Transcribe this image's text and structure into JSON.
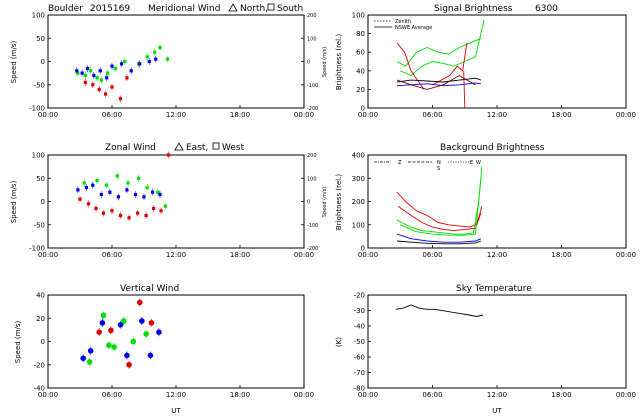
{
  "time_ticks": [
    "00:00",
    "06:00",
    "12:00",
    "18:00",
    "00:00"
  ],
  "x_label": "UT",
  "colors": {
    "north": "#0000ee",
    "south": "#dd0000",
    "east": "#00dd00",
    "west": "#0000ee",
    "zonal_west": "#dd0000"
  },
  "chart_data": [
    {
      "id": "meridional",
      "type": "scatter",
      "title_left": "Boulder",
      "title_date": "2015169",
      "title_main": "Meridional Wind",
      "title_leg1": "North,",
      "title_leg2": "South",
      "ylabel": "Speed (m/s)",
      "ylabel_right": "Speed (m/s)",
      "ylim": [
        -100,
        100
      ],
      "yticks": [
        "100",
        "50",
        "0",
        "-50",
        "-100"
      ],
      "yticks_right": [
        "200",
        "100",
        "0",
        "-100",
        "-200"
      ],
      "series": [
        {
          "color": "green",
          "x": [
            2.8,
            3.5,
            4.0,
            4.6,
            5.0,
            5.6,
            6.3,
            7.2,
            8.5,
            9.3,
            10.0,
            10.5,
            11.2
          ],
          "y": [
            -25,
            -30,
            -20,
            -35,
            -40,
            -25,
            -15,
            0,
            -5,
            10,
            20,
            30,
            5
          ]
        },
        {
          "color": "blue",
          "x": [
            2.7,
            3.2,
            3.7,
            4.3,
            4.9,
            5.5,
            6.0,
            6.9,
            7.8,
            8.6,
            9.5,
            10.1
          ],
          "y": [
            -20,
            -25,
            -15,
            -30,
            -20,
            -35,
            -10,
            -5,
            -20,
            -5,
            0,
            5
          ]
        },
        {
          "color": "red",
          "x": [
            3.5,
            4.2,
            4.8,
            5.4,
            6.0,
            6.8,
            7.4
          ],
          "y": [
            -45,
            -50,
            -60,
            -70,
            -55,
            -80,
            -35
          ]
        }
      ]
    },
    {
      "id": "zonal",
      "type": "scatter",
      "title_main": "Zonal Wind",
      "title_leg1": "East,",
      "title_leg2": "West",
      "ylabel": "Speed (m/s)",
      "ylabel_right": "Speed (m/s)",
      "ylim": [
        -100,
        100
      ],
      "yticks": [
        "100",
        "50",
        "0",
        "-50",
        "-100"
      ],
      "yticks_right": [
        "200",
        "100",
        "0",
        "-100",
        "-200"
      ],
      "series": [
        {
          "color": "green",
          "x": [
            3.4,
            4.6,
            5.5,
            6.5,
            7.5,
            8.5,
            9.3,
            10.3,
            11.0
          ],
          "y": [
            40,
            45,
            35,
            55,
            40,
            50,
            30,
            20,
            -10
          ]
        },
        {
          "color": "blue",
          "x": [
            2.8,
            3.6,
            4.2,
            5.0,
            5.8,
            6.6,
            7.4,
            8.2,
            9.0,
            9.8,
            10.5
          ],
          "y": [
            25,
            30,
            35,
            15,
            20,
            10,
            25,
            15,
            10,
            20,
            15
          ]
        },
        {
          "color": "red",
          "x": [
            3.0,
            3.8,
            4.5,
            5.2,
            6.0,
            6.8,
            7.6,
            8.4,
            9.2,
            9.9,
            10.6,
            11.3
          ],
          "y": [
            5,
            -5,
            -15,
            -25,
            -20,
            -30,
            -35,
            -25,
            -30,
            -15,
            -20,
            100
          ]
        }
      ]
    },
    {
      "id": "vertical",
      "type": "scatter",
      "title_main": "Vertical Wind",
      "ylabel": "Speed (m/s)",
      "ylim": [
        -50,
        50
      ],
      "yticks": [
        "40",
        "20",
        "0",
        "-20",
        "-40"
      ],
      "series": [
        {
          "color": "blue",
          "x": [
            3.3,
            4.0,
            5.1,
            6.8,
            7.4,
            8.8,
            9.6,
            10.4
          ],
          "y": [
            -18,
            -10,
            20,
            18,
            -15,
            22,
            -15,
            10
          ]
        },
        {
          "color": "red",
          "x": [
            4.8,
            5.9,
            7.6,
            8.6,
            9.7
          ],
          "y": [
            10,
            12,
            -25,
            42,
            20
          ]
        },
        {
          "color": "green",
          "x": [
            3.9,
            5.2,
            5.7,
            6.2,
            7.1,
            8.0,
            9.2
          ],
          "y": [
            -22,
            28,
            -4,
            -6,
            22,
            0,
            8
          ]
        }
      ]
    },
    {
      "id": "signal",
      "type": "line",
      "title_main": "Signal Brightness",
      "title_extra": "6300",
      "ylabel": "Brightness (rel.)",
      "ylim": [
        0,
        100
      ],
      "yticks": [
        "100",
        "80",
        "60",
        "40",
        "20",
        "0"
      ],
      "legend": [
        "Zenith",
        "NSWE Average"
      ],
      "series": [
        {
          "color": "green",
          "x": [
            2.7,
            3.5,
            4.5,
            5.5,
            6.5,
            7.5,
            8.5,
            9.5,
            10.5
          ],
          "y": [
            50,
            45,
            60,
            65,
            60,
            58,
            65,
            70,
            75
          ]
        },
        {
          "color": "green",
          "x": [
            3.0,
            4.0,
            5.0,
            6.0,
            7.0,
            8.0,
            9.0,
            10.0,
            10.8
          ],
          "y": [
            40,
            35,
            45,
            50,
            48,
            45,
            50,
            55,
            95
          ]
        },
        {
          "color": "red",
          "x": [
            2.7,
            3.4,
            4.0,
            4.6,
            5.2
          ],
          "y": [
            70,
            60,
            40,
            30,
            20
          ]
        },
        {
          "color": "red",
          "x": [
            6.0,
            6.8,
            7.6,
            8.3,
            8.8,
            9.2
          ],
          "y": [
            25,
            30,
            35,
            45,
            40,
            70
          ]
        },
        {
          "color": "red",
          "x": [
            8.9,
            9.0
          ],
          "y": [
            40,
            0
          ]
        },
        {
          "color": "black",
          "x": [
            2.7,
            4.0,
            5.5,
            7.0,
            8.5,
            10.0,
            10.5
          ],
          "y": [
            28,
            30,
            29,
            28,
            30,
            32,
            30
          ]
        },
        {
          "color": "blue",
          "x": [
            2.7,
            4.0,
            5.5,
            7.0,
            8.5,
            10.0,
            10.5
          ],
          "y": [
            24,
            25,
            26,
            24,
            25,
            27,
            26
          ]
        },
        {
          "color": "darkred",
          "x": [
            2.7,
            4.0,
            5.5,
            7.0,
            8.5,
            9.2,
            10.0
          ],
          "y": [
            30,
            25,
            20,
            25,
            35,
            30,
            25
          ]
        }
      ]
    },
    {
      "id": "background",
      "type": "line",
      "title_main": "Background Brightness",
      "ylabel": "Brightness (rel.)",
      "ylim": [
        0,
        400
      ],
      "yticks": [
        "400",
        "300",
        "200",
        "100",
        "0"
      ],
      "legend": [
        "Z",
        "N",
        "S",
        "E",
        "W"
      ],
      "series": [
        {
          "color": "red",
          "x": [
            2.7,
            3.5,
            4.5,
            5.5,
            6.5,
            7.5,
            8.5,
            9.5,
            10.0,
            10.3,
            10.6
          ],
          "y": [
            240,
            200,
            160,
            140,
            110,
            100,
            95,
            90,
            100,
            130,
            180
          ]
        },
        {
          "color": "red",
          "x": [
            2.8,
            4.0,
            5.0,
            6.0,
            7.0,
            8.0,
            9.0,
            10.0,
            10.5
          ],
          "y": [
            180,
            140,
            110,
            90,
            80,
            75,
            80,
            85,
            150
          ]
        },
        {
          "color": "green",
          "x": [
            2.7,
            4.0,
            5.0,
            6.0,
            7.0,
            8.0,
            9.0,
            9.8,
            10.3,
            10.6
          ],
          "y": [
            120,
            90,
            75,
            70,
            65,
            60,
            60,
            65,
            200,
            350
          ]
        },
        {
          "color": "green",
          "x": [
            3.0,
            4.5,
            6.0,
            7.5,
            9.0,
            10.0,
            10.5
          ],
          "y": [
            100,
            70,
            60,
            55,
            55,
            60,
            300
          ]
        },
        {
          "color": "blue",
          "x": [
            2.7,
            4.0,
            5.5,
            7.0,
            8.5,
            10.0,
            10.5
          ],
          "y": [
            60,
            40,
            30,
            25,
            25,
            30,
            40
          ]
        },
        {
          "color": "black",
          "x": [
            2.7,
            4.0,
            5.5,
            7.0,
            8.5,
            10.0,
            10.5
          ],
          "y": [
            30,
            25,
            20,
            18,
            18,
            22,
            30
          ]
        }
      ]
    },
    {
      "id": "temperature",
      "type": "line",
      "title_main": "Sky Temperature",
      "ylabel": "(K)",
      "ylim": [
        -80,
        -15
      ],
      "yticks": [
        "-20",
        "-30",
        "-40",
        "-50",
        "-60",
        "-70",
        "-80"
      ],
      "series": [
        {
          "color": "black",
          "x": [
            2.6,
            3.3,
            4.0,
            4.7,
            5.4,
            6.2,
            7.0,
            7.8,
            8.6,
            9.4,
            10.1,
            10.7
          ],
          "y": [
            -25,
            -24,
            -22,
            -24,
            -25,
            -25,
            -26,
            -27,
            -28,
            -29,
            -30,
            -29
          ]
        }
      ]
    }
  ]
}
